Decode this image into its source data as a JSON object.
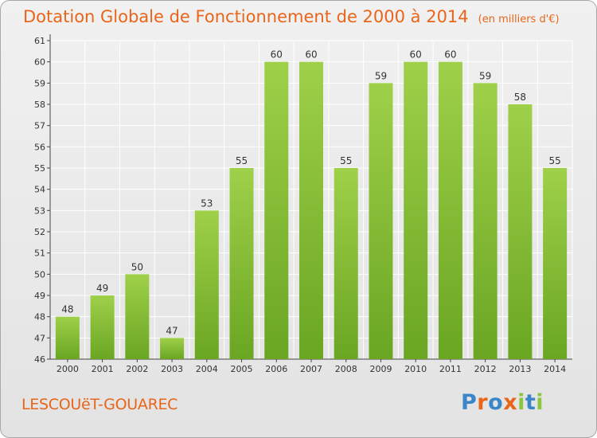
{
  "title": "Dotation Globale de Fonctionnement de 2000 à 2014",
  "unit_note": "(en milliers d'€)",
  "commune": "LESCOUëT-GOUAREC",
  "logo": {
    "text": "Proxiti",
    "letter_colors": [
      "#3a86c8",
      "#e8651a",
      "#3a86c8",
      "#e8651a",
      "#8cc63f",
      "#3a86c8",
      "#8cc63f"
    ]
  },
  "colors": {
    "bar_top": "#9fd04a",
    "bar_bottom": "#6aa622",
    "title": "#e8651a",
    "grid": "#ffffff"
  },
  "chart_data": {
    "type": "bar",
    "categories": [
      "2000",
      "2001",
      "2002",
      "2003",
      "2004",
      "2005",
      "2006",
      "2007",
      "2008",
      "2009",
      "2010",
      "2011",
      "2012",
      "2013",
      "2014"
    ],
    "values": [
      48,
      49,
      50,
      47,
      53,
      55,
      60,
      60,
      55,
      59,
      60,
      60,
      59,
      58,
      55
    ],
    "ylim": [
      46,
      61
    ],
    "yticks": [
      46,
      47,
      48,
      49,
      50,
      51,
      52,
      53,
      54,
      55,
      56,
      57,
      58,
      59,
      60,
      61
    ],
    "grid": true,
    "legend": "none"
  }
}
